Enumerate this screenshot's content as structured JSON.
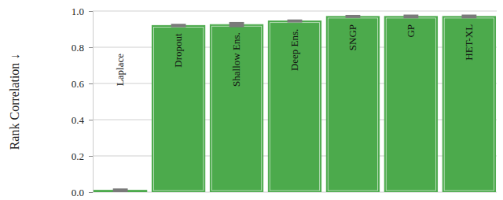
{
  "chart_data": {
    "type": "bar",
    "y_label": "Rank Correlation ↓",
    "categories": [
      "Laplace",
      "Dropout",
      "Shallow Ens.",
      "Deep Ens.",
      "SNGP",
      "GP",
      "HET-XL"
    ],
    "values": [
      0.01,
      0.92,
      0.925,
      0.945,
      0.97,
      0.97,
      0.97
    ],
    "errors": [
      0.006,
      0.005,
      0.01,
      0.004,
      0.004,
      0.006,
      0.006
    ],
    "color": "#4caa4c",
    "ylim": [
      0,
      1
    ],
    "yticks": [
      {
        "value": 0,
        "label": "0.0"
      },
      0.2,
      0.4,
      0.6,
      0.8,
      {
        "value": 1,
        "label": "1.0"
      }
    ],
    "grid": true
  }
}
